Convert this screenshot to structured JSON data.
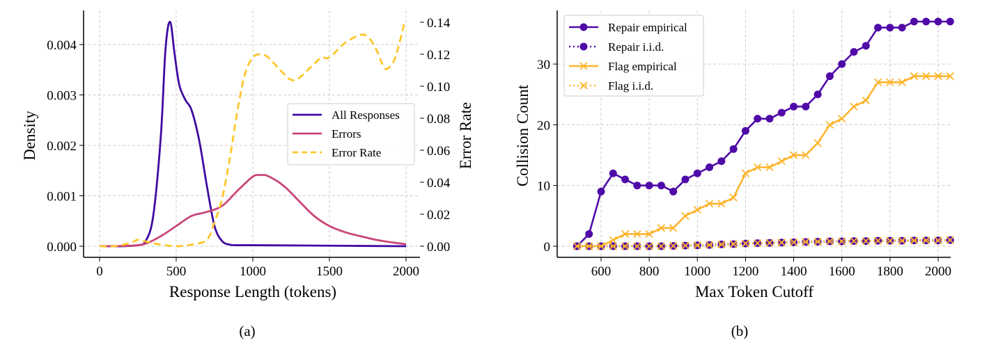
{
  "chart_data": [
    {
      "type": "line",
      "panel_label": "(a)",
      "xlabel": "Response Length (tokens)",
      "ylabel": "Density",
      "y2label": "Error Rate",
      "xlim": [
        -60,
        2060
      ],
      "ylim": [
        -0.0002,
        0.0047
      ],
      "y2lim": [
        -0.007,
        0.147
      ],
      "xticks": [
        0,
        500,
        1000,
        1500,
        2000
      ],
      "yticks": [
        0.0,
        0.001,
        0.002,
        0.003,
        0.004
      ],
      "y2ticks": [
        0.0,
        0.02,
        0.04,
        0.06,
        0.08,
        0.1,
        0.12,
        0.14
      ],
      "grid": true,
      "legend": "center-right",
      "series": [
        {
          "name": "All Responses",
          "axis": "left",
          "color": "#3f0aa0",
          "style": "solid",
          "x": [
            0,
            150,
            250,
            300,
            350,
            400,
            430,
            460,
            490,
            520,
            560,
            600,
            650,
            700,
            750,
            800,
            850,
            900,
            1000,
            1500,
            2000
          ],
          "y": [
            0,
            0,
            2e-05,
            0.0001,
            0.0006,
            0.0022,
            0.0039,
            0.00445,
            0.0038,
            0.0032,
            0.0029,
            0.0027,
            0.0021,
            0.0012,
            0.0004,
            0.0001,
            3e-05,
            2e-05,
            2e-05,
            1e-05,
            0
          ]
        },
        {
          "name": "Errors",
          "axis": "left",
          "color": "#c9457a",
          "style": "solid",
          "x": [
            0,
            200,
            300,
            400,
            500,
            600,
            700,
            800,
            900,
            1000,
            1050,
            1100,
            1200,
            1300,
            1400,
            1500,
            1600,
            1700,
            1800,
            1900,
            2000
          ],
          "y": [
            0,
            1e-05,
            5e-05,
            0.0002,
            0.0004,
            0.0006,
            0.00068,
            0.0008,
            0.0011,
            0.00138,
            0.00141,
            0.00139,
            0.0012,
            0.0009,
            0.0006,
            0.0004,
            0.00028,
            0.0002,
            0.00013,
            8e-05,
            4e-05
          ]
        },
        {
          "name": "Error Rate",
          "axis": "right",
          "color": "#fcc72a",
          "style": "dashed",
          "x": [
            0,
            100,
            200,
            250,
            300,
            400,
            500,
            600,
            700,
            750,
            800,
            850,
            900,
            950,
            1000,
            1050,
            1100,
            1200,
            1250,
            1300,
            1400,
            1450,
            1500,
            1600,
            1700,
            1750,
            1800,
            1850,
            1880,
            1930,
            1990
          ],
          "y": [
            0,
            0,
            0.002,
            0.004,
            0.003,
            0.001,
            0,
            0.001,
            0.004,
            0.015,
            0.03,
            0.055,
            0.085,
            0.108,
            0.118,
            0.12,
            0.118,
            0.108,
            0.104,
            0.105,
            0.114,
            0.118,
            0.118,
            0.127,
            0.132,
            0.131,
            0.124,
            0.113,
            0.111,
            0.118,
            0.14
          ]
        }
      ]
    },
    {
      "type": "line",
      "panel_label": "(b)",
      "xlabel": "Max Token Cutoff",
      "ylabel": "Collision Count",
      "xlim": [
        450,
        2100
      ],
      "ylim": [
        -1.7,
        39
      ],
      "xticks": [
        600,
        800,
        1000,
        1200,
        1400,
        1600,
        1800,
        2000
      ],
      "yticks": [
        0,
        10,
        20,
        30
      ],
      "grid": true,
      "legend": "top-left",
      "x": [
        500,
        550,
        600,
        650,
        700,
        750,
        800,
        850,
        900,
        950,
        1000,
        1050,
        1100,
        1150,
        1200,
        1250,
        1300,
        1350,
        1400,
        1450,
        1500,
        1550,
        1600,
        1650,
        1700,
        1750,
        1800,
        1850,
        1900,
        1950,
        2000,
        2050
      ],
      "series": [
        {
          "name": "Repair empirical",
          "color": "#4f0aa8",
          "style": "solid",
          "marker": "circle",
          "values": [
            0,
            2,
            9,
            12,
            11,
            10,
            10,
            10,
            9,
            11,
            12,
            13,
            14,
            16,
            19,
            21,
            21,
            22,
            23,
            23,
            25,
            28,
            30,
            32,
            33,
            36,
            36,
            36,
            37,
            37,
            37,
            37
          ]
        },
        {
          "name": "Repair i.i.d.",
          "color": "#4f0aa8",
          "style": "dotted",
          "marker": "circle",
          "values": [
            0,
            0,
            0,
            0,
            0,
            0,
            0,
            0,
            0.05,
            0.1,
            0.15,
            0.2,
            0.3,
            0.35,
            0.45,
            0.5,
            0.55,
            0.6,
            0.65,
            0.7,
            0.75,
            0.8,
            0.8,
            0.85,
            0.85,
            0.9,
            0.9,
            0.9,
            0.95,
            0.95,
            0.95,
            1.0
          ]
        },
        {
          "name": "Flag empirical",
          "color": "#fdb52c",
          "style": "solid",
          "marker": "x",
          "values": [
            0,
            0,
            0,
            1,
            2,
            2,
            2,
            3,
            3,
            5,
            6,
            7,
            7,
            8,
            12,
            13,
            13,
            14,
            15,
            15,
            17,
            20,
            21,
            23,
            24,
            27,
            27,
            27,
            28,
            28,
            28,
            28
          ]
        },
        {
          "name": "Flag i.i.d.",
          "color": "#fdb52c",
          "style": "dotted",
          "marker": "x",
          "values": [
            0,
            0,
            0,
            0,
            0,
            0,
            0,
            0,
            0.05,
            0.1,
            0.15,
            0.2,
            0.3,
            0.35,
            0.45,
            0.5,
            0.55,
            0.6,
            0.65,
            0.7,
            0.75,
            0.8,
            0.8,
            0.85,
            0.85,
            0.9,
            0.9,
            0.9,
            0.95,
            0.95,
            0.95,
            1.0
          ]
        }
      ]
    }
  ]
}
